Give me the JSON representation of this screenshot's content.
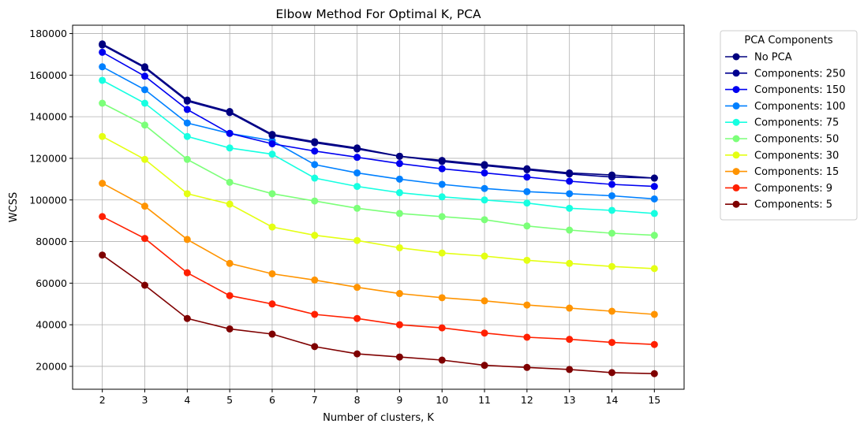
{
  "chart_data": {
    "type": "line",
    "title": "Elbow Method For Optimal K, PCA",
    "xlabel": "Number of clusters, K",
    "ylabel": "WCSS",
    "x": [
      2,
      3,
      4,
      5,
      6,
      7,
      8,
      9,
      10,
      11,
      12,
      13,
      14,
      15
    ],
    "xlim": [
      1.3,
      15.7
    ],
    "ylim": [
      9000,
      184000
    ],
    "yticks": [
      20000,
      40000,
      60000,
      80000,
      100000,
      120000,
      140000,
      160000,
      180000
    ],
    "grid": true,
    "legend": {
      "title": "PCA Components",
      "placement": "outside-right"
    },
    "series": [
      {
        "name": "No PCA",
        "color": "#00007f",
        "values": [
          175000,
          164000,
          148000,
          142500,
          131500,
          128000,
          125000,
          121000,
          119000,
          117000,
          115000,
          113000,
          112000,
          110500
        ]
      },
      {
        "name": "Components: 250",
        "color": "#000090",
        "values": [
          174500,
          163500,
          147500,
          142000,
          131000,
          127500,
          124500,
          121000,
          118500,
          116500,
          114500,
          112500,
          111000,
          110500
        ]
      },
      {
        "name": "Components: 150",
        "color": "#0000f0",
        "values": [
          171000,
          159500,
          143500,
          132000,
          127000,
          123500,
          120500,
          117500,
          115000,
          113000,
          111000,
          109000,
          107500,
          106500
        ]
      },
      {
        "name": "Components: 100",
        "color": "#0080ff",
        "values": [
          164000,
          153000,
          137000,
          132000,
          128500,
          117000,
          113000,
          110000,
          107500,
          105500,
          104000,
          103000,
          102000,
          100500
        ]
      },
      {
        "name": "Components: 75",
        "color": "#16ffe1",
        "values": [
          157500,
          146500,
          130500,
          125000,
          122000,
          110500,
          106500,
          103500,
          101500,
          100000,
          98500,
          96000,
          95000,
          93500
        ]
      },
      {
        "name": "Components: 50",
        "color": "#7cff79",
        "values": [
          146500,
          136000,
          119500,
          108500,
          103000,
          99500,
          96000,
          93500,
          92000,
          90500,
          87500,
          85500,
          84000,
          83000
        ]
      },
      {
        "name": "Components: 30",
        "color": "#e4ff13",
        "values": [
          130500,
          119500,
          103000,
          98000,
          87000,
          83000,
          80500,
          77000,
          74500,
          73000,
          71000,
          69500,
          68000,
          67000
        ]
      },
      {
        "name": "Components: 15",
        "color": "#ff9400",
        "values": [
          108000,
          97000,
          81000,
          69500,
          64500,
          61500,
          58000,
          55000,
          53000,
          51500,
          49500,
          48000,
          46500,
          45000
        ]
      },
      {
        "name": "Components: 9",
        "color": "#ff2000",
        "values": [
          92000,
          81500,
          65000,
          54000,
          50000,
          45000,
          43000,
          40000,
          38500,
          36000,
          34000,
          33000,
          31500,
          30500
        ]
      },
      {
        "name": "Components: 5",
        "color": "#7f0000",
        "values": [
          73500,
          59000,
          43000,
          38000,
          35500,
          29500,
          26000,
          24500,
          23000,
          20500,
          19500,
          18500,
          17000,
          16500
        ]
      }
    ]
  }
}
